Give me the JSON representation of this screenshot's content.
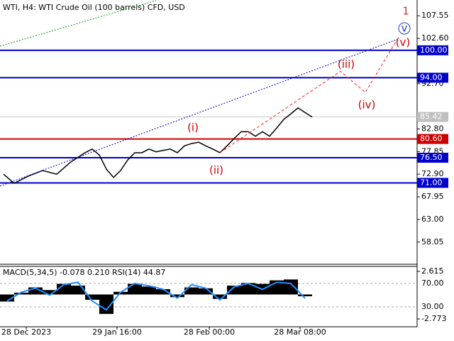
{
  "chart_data": {
    "type": "line",
    "title": "WTI, H4:  WTI Crude Oil (100 barrels) CFD, USD",
    "xlim": [
      0,
      58.8
    ],
    "xticks": [
      {
        "value": 3.7,
        "label": "28 Dec 2023"
      },
      {
        "value": 16.5,
        "label": "29 Jan 16:00"
      },
      {
        "value": 29.5,
        "label": "28 Feb 00:00"
      },
      {
        "value": 42.3,
        "label": "28 Mar 08:00"
      }
    ],
    "ylim": [
      53.2,
      111.0
    ],
    "yticks": [
      {
        "value": 107.55,
        "label": "107.55"
      },
      {
        "value": 102.6,
        "label": "102.60"
      },
      {
        "value": 92.7,
        "label": "92.70"
      },
      {
        "value": 82.8,
        "label": "82.80"
      },
      {
        "value": 77.85,
        "label": "77.85"
      },
      {
        "value": 72.9,
        "label": "72.90"
      },
      {
        "value": 67.95,
        "label": "67.95"
      },
      {
        "value": 63.0,
        "label": "63.00"
      },
      {
        "value": 58.05,
        "label": "58.05"
      }
    ],
    "levels": [
      {
        "value": 100,
        "label": "100.00",
        "color": "#0000cc"
      },
      {
        "value": 94,
        "label": "94.00",
        "color": "#0000cc"
      },
      {
        "value": 80.6,
        "label": "80.60",
        "color": "#cc0000"
      },
      {
        "value": 76.5,
        "label": "76.50",
        "color": "#0000cc"
      },
      {
        "value": 71,
        "label": "71.00",
        "color": "#0000cc"
      }
    ],
    "last_price": {
      "value": 85.42,
      "label": "85.42"
    },
    "series": [
      {
        "color": "#000000",
        "x": [
          0.5,
          2,
          4,
          6,
          8,
          10,
          12,
          13,
          14,
          15,
          16,
          17,
          18,
          19,
          20,
          21,
          22,
          23,
          24,
          25,
          26,
          27,
          28,
          29,
          30,
          31,
          32,
          33,
          34,
          35,
          36,
          37,
          38,
          39,
          40,
          41,
          42,
          43,
          44
        ],
        "values": [
          72.9,
          70.9,
          72.5,
          73.7,
          72.9,
          75.6,
          77.6,
          78.4,
          77.1,
          74.0,
          72.2,
          73.7,
          76.0,
          77.6,
          77.6,
          78.4,
          77.8,
          78.1,
          78.4,
          77.6,
          79.1,
          79.6,
          79.9,
          79.1,
          78.4,
          77.6,
          79.1,
          80.7,
          82.2,
          82.2,
          81.2,
          82.2,
          81.2,
          83.0,
          84.9,
          86.1,
          87.4,
          86.4,
          85.42
        ]
      },
      {
        "color": "#ff2020",
        "dash": "4,3",
        "x": [
          31,
          48,
          51.5,
          56
        ],
        "values": [
          77.6,
          95.4,
          90.8,
          102.4
        ]
      },
      {
        "color": "#0000cc",
        "dash": "2,2",
        "x": [
          0,
          56
        ],
        "values": [
          70.3,
          102.4
        ]
      },
      {
        "color": "#119911",
        "dash": "2,2",
        "x": [
          0,
          22
        ],
        "values": [
          100.9,
          110.9
        ]
      }
    ],
    "annotations": [
      {
        "text": "1",
        "color": "#cc3333"
      },
      {
        "text": "v",
        "color": "#2244cc"
      },
      {
        "text": "(v)",
        "color": "#cc0000"
      },
      {
        "text": "(iii)",
        "color": "#cc0000"
      },
      {
        "text": "(iv)",
        "color": "#cc0000"
      },
      {
        "text": "(i)",
        "color": "#cc0000"
      },
      {
        "text": "(ii)",
        "color": "#cc0000"
      }
    ],
    "indicator": {
      "title": "MACD(5,34,5) -0.078 0.210 RSI(14) 44.87",
      "ylim": [
        -3.66,
        3.18
      ],
      "yticks": [
        {
          "value": 2.615,
          "label": "2.615"
        },
        {
          "value": -2.773,
          "label": "-2.773"
        }
      ],
      "y2lim": [
        -3.9,
        99.1
      ],
      "y2ticks": [
        {
          "value": 70,
          "label": "70.00"
        },
        {
          "value": 30,
          "label": "30.00"
        }
      ],
      "x": [
        1,
        3,
        5,
        7,
        9,
        11,
        13,
        15,
        17,
        19,
        21,
        23,
        25,
        27,
        29,
        31,
        33,
        35,
        37,
        39,
        41,
        43
      ],
      "series": [
        {
          "color": "#000000",
          "values": [
            -0.8,
            0.2,
            0.8,
            0.5,
            1.2,
            1.0,
            -0.6,
            -2.2,
            0.3,
            1.2,
            0.9,
            0.6,
            -0.3,
            0.8,
            0.7,
            -0.5,
            1.0,
            1.3,
            1.2,
            1.6,
            1.7,
            -0.2
          ]
        },
        {
          "color": "#1e90ff",
          "axis": "y2",
          "values": [
            40,
            55,
            62,
            50,
            68,
            72,
            40,
            25,
            55,
            70,
            66,
            60,
            45,
            68,
            62,
            42,
            64,
            70,
            60,
            72,
            70,
            44.87
          ]
        }
      ]
    }
  }
}
